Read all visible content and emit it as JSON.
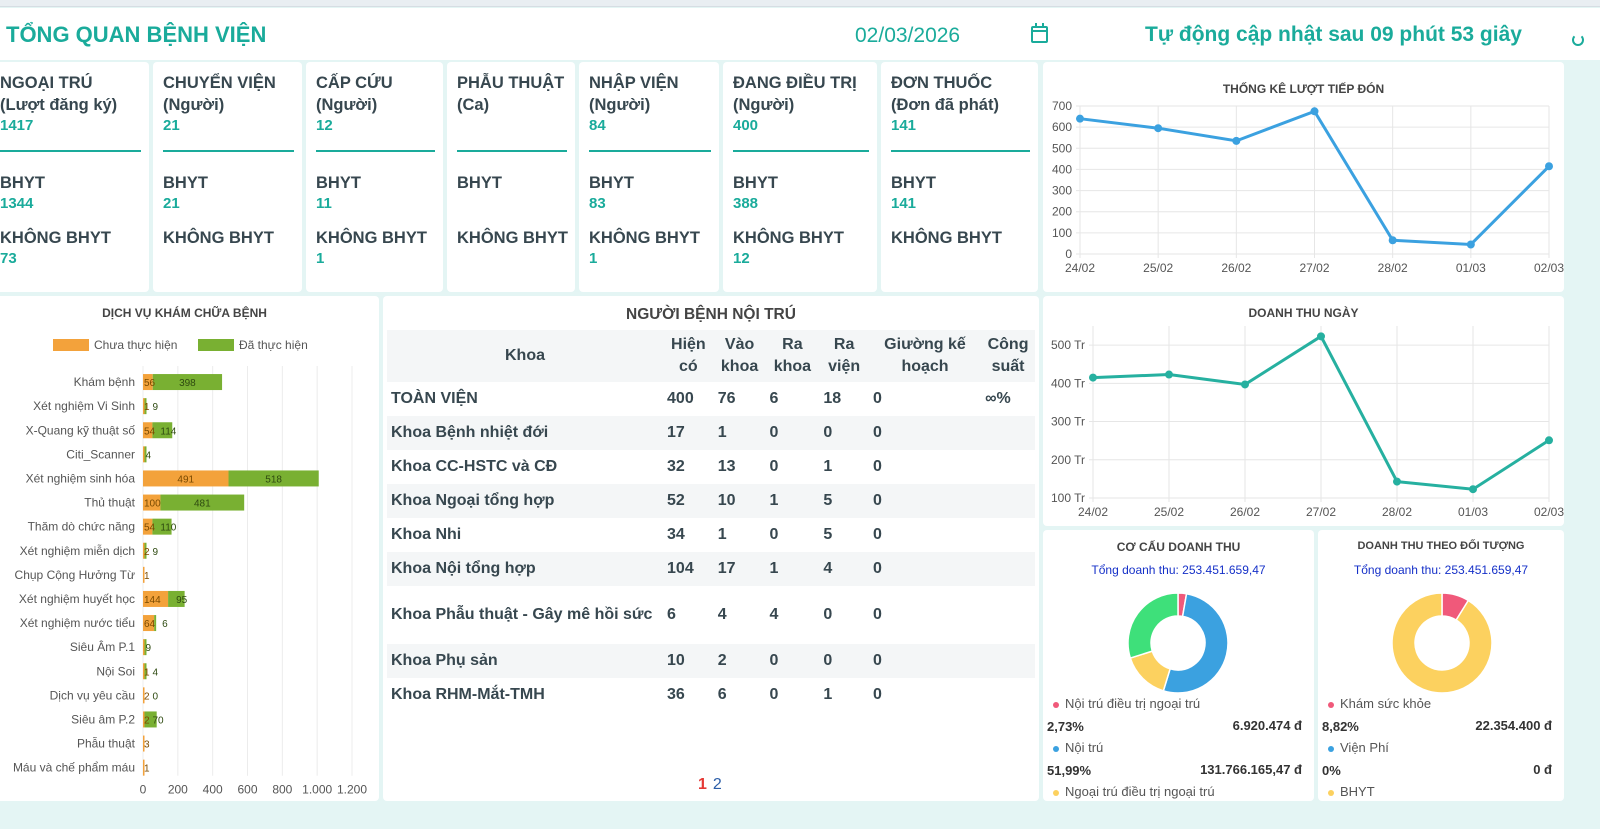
{
  "header": {
    "title": "TỔNG QUAN BỆNH VIỆN",
    "date": "02/03/2026",
    "auto_update": "Tự động cập nhật sau 09 phút 53 giây"
  },
  "stats": [
    {
      "label1": "NGOẠI TRÚ",
      "label2": "(Lượt đăng ký)",
      "value": "1417",
      "bhyt_label": "BHYT",
      "bhyt": "1344",
      "non_label": "KHÔNG BHYT",
      "non": "73"
    },
    {
      "label1": "CHUYỂN VIỆN",
      "label2": "(Người)",
      "value": "21",
      "bhyt_label": "BHYT",
      "bhyt": "21",
      "non_label": "KHÔNG BHYT",
      "non": ""
    },
    {
      "label1": "CẤP CỨU",
      "label2": "(Người)",
      "value": "12",
      "bhyt_label": "BHYT",
      "bhyt": "11",
      "non_label": "KHÔNG BHYT",
      "non": "1"
    },
    {
      "label1": "PHẪU THUẬT",
      "label2": "(Ca)",
      "value": "",
      "bhyt_label": "BHYT",
      "bhyt": "",
      "non_label": "KHÔNG BHYT",
      "non": ""
    },
    {
      "label1": "NHẬP VIỆN",
      "label2": "(Người)",
      "value": "84",
      "bhyt_label": "BHYT",
      "bhyt": "83",
      "non_label": "KHÔNG BHYT",
      "non": "1"
    },
    {
      "label1": "ĐANG ĐIỀU TRỊ",
      "label2": "(Người)",
      "value": "400",
      "bhyt_label": "BHYT",
      "bhyt": "388",
      "non_label": "KHÔNG BHYT",
      "non": "12"
    },
    {
      "label1": "ĐƠN THUỐC",
      "label2": "(Đơn đã phát)",
      "value": "141",
      "bhyt_label": "BHYT",
      "bhyt": "141",
      "non_label": "KHÔNG BHYT",
      "non": ""
    }
  ],
  "charts": {
    "reception": {
      "title": "THỐNG KÊ LƯỢT TIẾP ĐÓN",
      "color": "#3ba1e0",
      "type": "line",
      "categories": [
        "24/02",
        "25/02",
        "26/02",
        "27/02",
        "28/02",
        "01/03",
        "02/03"
      ],
      "values": [
        640,
        595,
        535,
        675,
        65,
        45,
        415
      ],
      "y_ticks": [
        "0",
        "100",
        "200",
        "300",
        "400",
        "500",
        "600",
        "700"
      ],
      "ylim": [
        0,
        700
      ]
    },
    "revenue": {
      "title": "DOANH THU NGÀY",
      "color": "#26b0a0",
      "type": "line",
      "categories": [
        "24/02",
        "25/02",
        "26/02",
        "27/02",
        "28/02",
        "01/03",
        "02/03"
      ],
      "values": [
        415,
        423,
        397,
        523,
        143,
        123,
        251
      ],
      "y_ticks": [
        "100 Tr",
        "200 Tr",
        "300 Tr",
        "400 Tr",
        "500 Tr"
      ],
      "ylim": [
        100,
        550
      ]
    },
    "services": {
      "title": "DỊCH VỤ KHÁM CHỮA BỆNH",
      "type": "bar",
      "legend_pending": "Chưa thực hiện",
      "legend_done": "Đã thực hiện",
      "color_pending": "#f3a23b",
      "color_done": "#79b032",
      "x_ticks": [
        "0",
        "200",
        "400",
        "600",
        "800",
        "1.000",
        "1.200"
      ],
      "xlim": [
        0,
        1200
      ],
      "categories": [
        "Khám bệnh",
        "Xét nghiệm Vi Sinh",
        "X-Quang kỹ thuật số",
        "Citi_Scanner",
        "Xét nghiệm sinh hóa",
        "Thủ thuật",
        "Thăm dò chức năng",
        "Xét nghiệm miễn dịch",
        "Chụp Cộng Hưởng Từ",
        "Xét nghiệm huyết học",
        "Xét nghiệm nước tiểu",
        "Siêu Âm P.1",
        "Nội Soi",
        "Dịch vụ yêu cầu",
        "Siêu âm P.2",
        "Phẫu thuật",
        "Máu và chế phẩm máu"
      ],
      "pending": [
        56,
        1,
        54,
        1,
        491,
        100,
        54,
        2,
        1,
        144,
        64,
        1,
        1,
        2,
        2,
        3,
        1
      ],
      "done": [
        398,
        9,
        114,
        4,
        518,
        481,
        110,
        9,
        0,
        95,
        6,
        9,
        4,
        0,
        70,
        0,
        0
      ],
      "pending_labels": [
        "56",
        "1",
        "54",
        "",
        "491",
        "100",
        "54",
        "2",
        "1",
        "144",
        "64",
        "",
        "1",
        "2",
        "2",
        "3",
        "1"
      ],
      "done_labels": [
        "398",
        "9",
        "114",
        "4",
        "518",
        "481",
        "110",
        "9",
        "",
        "95",
        "6",
        "9",
        "4",
        "0",
        "70",
        "",
        ""
      ]
    },
    "revenue_structure": {
      "title": "CƠ CẤU DOANH THU",
      "total": "Tổng doanh thu: 253.451.659,47",
      "slices": [
        {
          "name": "Nội trú điều trị ngoại trú",
          "percent": 2.73,
          "pct_label": "2,73%",
          "amount": "6.920.474 đ",
          "color": "#f0597a"
        },
        {
          "name": "Nội trú",
          "percent": 51.99,
          "pct_label": "51,99%",
          "amount": "131.766.165,47 đ",
          "color": "#3ba1e0"
        },
        {
          "name": "Ngoại trú điều trị ngoại trú",
          "percent": 15.4,
          "pct_label": "",
          "amount": "",
          "color": "#fcd15f"
        },
        {
          "name": "",
          "percent": 29.88,
          "pct_label": "",
          "amount": "",
          "color": "#3ee07a"
        }
      ]
    },
    "revenue_target": {
      "title": "DOANH THU THEO ĐỐI TƯỢNG",
      "total": "Tổng doanh thu: 253.451.659,47",
      "slices": [
        {
          "name": "Khám sức khỏe",
          "percent": 8.82,
          "pct_label": "8,82%",
          "amount": "22.354.400 đ",
          "color": "#f0597a"
        },
        {
          "name": "Viện Phí",
          "percent": 0,
          "pct_label": "0%",
          "amount": "0 đ",
          "color": "#3ba1e0"
        },
        {
          "name": "BHYT",
          "percent": 91.18,
          "pct_label": "",
          "amount": "",
          "color": "#fcd15f"
        }
      ]
    }
  },
  "inpatient": {
    "title": "NGƯỜI BỆNH NỘI TRÚ",
    "columns": [
      "Khoa",
      "Hiện có",
      "Vào khoa",
      "Ra khoa",
      "Ra viện",
      "Giường kế hoạch",
      "Công suất"
    ],
    "rows": [
      [
        "TOÀN VIỆN",
        "400",
        "76",
        "6",
        "18",
        "0",
        "∞%"
      ],
      [
        "Khoa Bệnh nhiệt đới",
        "17",
        "1",
        "0",
        "0",
        "0",
        ""
      ],
      [
        "Khoa CC-HSTC và CĐ",
        "32",
        "13",
        "0",
        "1",
        "0",
        ""
      ],
      [
        "Khoa Ngoại tổng hợp",
        "52",
        "10",
        "1",
        "5",
        "0",
        ""
      ],
      [
        "Khoa Nhi",
        "34",
        "1",
        "0",
        "5",
        "0",
        ""
      ],
      [
        "Khoa Nội tổng hợp",
        "104",
        "17",
        "1",
        "4",
        "0",
        ""
      ],
      [
        "Khoa Phẫu thuật - Gây mê hồi sức",
        "6",
        "4",
        "4",
        "0",
        "0",
        ""
      ],
      [
        "Khoa Phụ sản",
        "10",
        "2",
        "0",
        "0",
        "0",
        ""
      ],
      [
        "Khoa RHM-Mắt-TMH",
        "36",
        "6",
        "0",
        "1",
        "0",
        ""
      ]
    ],
    "pages": [
      "1",
      "2"
    ]
  }
}
